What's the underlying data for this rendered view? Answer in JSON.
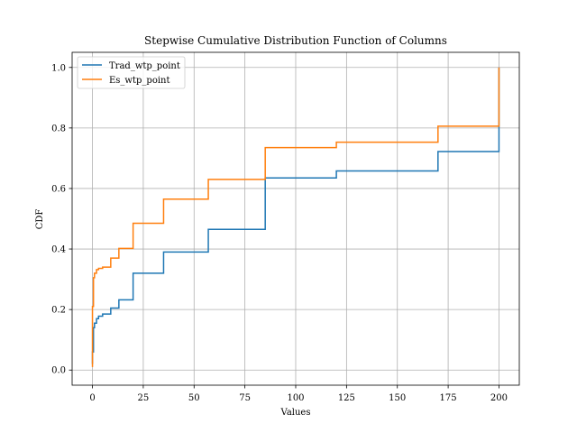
{
  "chart_data": {
    "type": "line",
    "title": "Stepwise Cumulative Distribution Function of Columns",
    "xlabel": "Values",
    "ylabel": "CDF",
    "xlim": [
      -10,
      210
    ],
    "ylim": [
      -0.05,
      1.05
    ],
    "xticks": [
      0,
      25,
      50,
      75,
      100,
      125,
      150,
      175,
      200
    ],
    "yticks": [
      0.0,
      0.2,
      0.4,
      0.6,
      0.8,
      1.0
    ],
    "xtick_labels": [
      "0",
      "25",
      "50",
      "75",
      "100",
      "125",
      "150",
      "175",
      "200"
    ],
    "ytick_labels": [
      "0.0",
      "0.2",
      "0.4",
      "0.6",
      "0.8",
      "1.0"
    ],
    "grid": true,
    "legend_position": "top-left",
    "step": "post",
    "series": [
      {
        "name": "Trad_wtp_point",
        "color": "#1f77b4",
        "x": [
          0,
          0,
          0.5,
          1,
          2,
          3,
          5,
          9,
          13,
          20,
          35,
          57,
          85,
          120,
          170,
          200
        ],
        "y": [
          0.02,
          0.06,
          0.14,
          0.155,
          0.17,
          0.178,
          0.185,
          0.205,
          0.232,
          0.32,
          0.39,
          0.465,
          0.635,
          0.658,
          0.722,
          1.0
        ]
      },
      {
        "name": "Es_wtp_point",
        "color": "#ff7f0e",
        "x": [
          0,
          0,
          0.5,
          1,
          2,
          3,
          5,
          9,
          13,
          20,
          35,
          57,
          85,
          120,
          170,
          200
        ],
        "y": [
          0.01,
          0.21,
          0.305,
          0.32,
          0.332,
          0.336,
          0.34,
          0.37,
          0.402,
          0.485,
          0.565,
          0.63,
          0.735,
          0.753,
          0.806,
          1.0
        ]
      }
    ]
  }
}
